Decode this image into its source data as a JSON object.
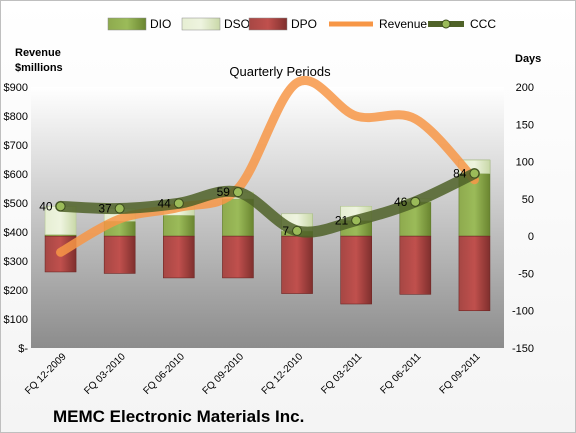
{
  "chart_data": {
    "type": "bar",
    "title": "Quarterly Periods",
    "company": "MEMC Electronic Materials Inc.",
    "categories": [
      "FQ 12-2009",
      "FQ 03-2010",
      "FQ 06-2010",
      "FQ 09-2010",
      "FQ 12-2010",
      "FQ 03-2011",
      "FQ 06-2011",
      "FQ 09-2011"
    ],
    "ylabel_left": "Revenue\n$millions",
    "ylabel_right": "Days",
    "y_left": {
      "min": 0,
      "max": 900,
      "step": 100,
      "tick_labels": [
        "$-",
        "$100",
        "$200",
        "$300",
        "$400",
        "$500",
        "$600",
        "$700",
        "$800",
        "$900"
      ]
    },
    "y_right": {
      "min": -150,
      "max": 200,
      "step": 50,
      "tick_labels": [
        "-150",
        "-100",
        "-50",
        "0",
        "50",
        "100",
        "150",
        "200"
      ]
    },
    "legend": [
      "DIO",
      "DSO",
      "DPO",
      "Revenue",
      "CCC"
    ],
    "legend_position": "top",
    "series": [
      {
        "name": "DIO",
        "type": "stacked-bar",
        "axis": "days",
        "values": [
          2,
          20,
          28,
          50,
          30,
          40,
          50,
          102
        ]
      },
      {
        "name": "DSO",
        "type": "stacked-bar",
        "axis": "days",
        "values": [
          38,
          17,
          16,
          9,
          -23,
          -19,
          -4,
          -18
        ]
      },
      {
        "name": "DPO",
        "type": "negative-bar",
        "axis": "days",
        "values": [
          -48,
          -50,
          -56,
          -56,
          -77,
          -91,
          -78,
          -100
        ]
      },
      {
        "name": "Revenue",
        "type": "line",
        "axis": "revenue",
        "values": [
          330,
          445,
          485,
          550,
          915,
          800,
          790,
          580
        ]
      },
      {
        "name": "CCC",
        "type": "line",
        "axis": "days",
        "values": [
          40,
          37,
          44,
          59,
          7,
          21,
          46,
          84
        ],
        "data_labels": [
          "40",
          "37",
          "44",
          "59",
          "7",
          "21",
          "46",
          "84"
        ]
      }
    ],
    "colors": {
      "DIO": "#77933c",
      "DSO": "#d7e4bd",
      "DPO": "#953735",
      "Revenue": "#f79646",
      "CCC": "#4f6228"
    },
    "grid": false
  }
}
